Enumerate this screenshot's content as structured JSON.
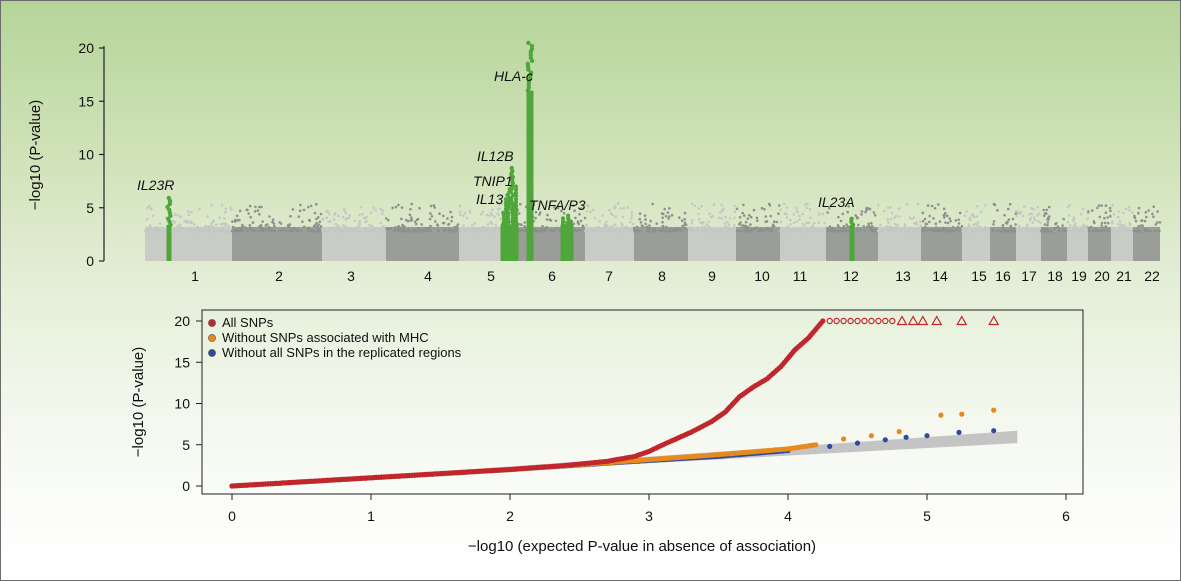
{
  "chart_data": [
    {
      "type": "scatter",
      "title": "",
      "xlabel": "",
      "ylabel": "−log10 (P-value)",
      "ylim": [
        0,
        21
      ],
      "yticks": [
        0,
        5,
        10,
        15,
        20
      ],
      "chromosomes": [
        "1",
        "2",
        "3",
        "4",
        "5",
        "6",
        "7",
        "8",
        "9",
        "10",
        "11",
        "12",
        "13",
        "14",
        "15",
        "16",
        "17",
        "18",
        "19",
        "20",
        "21",
        "22"
      ],
      "chromosome_colors": [
        "#c6c6c6",
        "#8f8f8f"
      ],
      "highlight_color": "#4fa63a",
      "annotated_loci": [
        {
          "gene": "IL23R",
          "chromosome": "1",
          "peak": 6.2
        },
        {
          "gene": "IL13",
          "chromosome": "5",
          "peak": 4.8
        },
        {
          "gene": "IL12B",
          "chromosome": "5",
          "peak": 9.0
        },
        {
          "gene": "TNIP1",
          "chromosome": "5",
          "peak": 7.0
        },
        {
          "gene": "HLA-c",
          "chromosome": "6",
          "peak": 20.5
        },
        {
          "gene": "TNFA/P3",
          "chromosome": "6",
          "peak": 4.3
        },
        {
          "gene": "IL23A",
          "chromosome": "12",
          "peak": 4.0
        }
      ]
    },
    {
      "type": "scatter",
      "title": "",
      "xlabel": "−log10 (expected P-value in absence of association)",
      "ylabel": "−log10 (P-value)",
      "xlim": [
        -0.2,
        6.3
      ],
      "ylim": [
        -0.5,
        21
      ],
      "xticks": [
        0,
        1,
        2,
        3,
        4,
        5,
        6
      ],
      "yticks": [
        0,
        5,
        10,
        15,
        20
      ],
      "legend_position": "top-left",
      "expected_band": {
        "x": [
          0,
          5.65
        ],
        "lower": [
          0,
          5.2
        ],
        "upper": [
          0,
          6.7
        ],
        "color": "#c4c4c4"
      },
      "series": [
        {
          "name": "All SNPs",
          "color": "#c0272d",
          "points": [
            [
              0,
              0
            ],
            [
              0.5,
              0.5
            ],
            [
              1,
              1
            ],
            [
              1.5,
              1.5
            ],
            [
              2,
              2
            ],
            [
              2.4,
              2.5
            ],
            [
              2.7,
              3.0
            ],
            [
              2.9,
              3.6
            ],
            [
              3.0,
              4.2
            ],
            [
              3.1,
              5.0
            ],
            [
              3.3,
              6.5
            ],
            [
              3.45,
              7.8
            ],
            [
              3.55,
              9.0
            ],
            [
              3.65,
              10.8
            ],
            [
              3.75,
              12.0
            ],
            [
              3.85,
              13.0
            ],
            [
              3.95,
              14.5
            ],
            [
              4.05,
              16.5
            ],
            [
              4.15,
              18.0
            ],
            [
              4.25,
              20.0
            ]
          ],
          "capped_x": [
            4.3,
            4.35,
            4.4,
            4.45,
            4.5,
            4.55,
            4.6,
            4.65,
            4.7,
            4.75,
            4.82,
            4.9,
            4.97,
            5.07,
            5.25,
            5.48
          ],
          "capped_value": 20
        },
        {
          "name": "Without SNPs associated with MHC",
          "color": "#e68a1e",
          "points": [
            [
              0,
              0
            ],
            [
              1,
              1
            ],
            [
              2,
              2
            ],
            [
              2.6,
              2.7
            ],
            [
              3,
              3.2
            ],
            [
              3.5,
              3.8
            ],
            [
              4,
              4.5
            ],
            [
              4.2,
              5.0
            ],
            [
              4.4,
              5.7
            ],
            [
              4.6,
              6.1
            ],
            [
              4.8,
              6.6
            ],
            [
              5.1,
              8.6
            ],
            [
              5.25,
              8.7
            ],
            [
              5.48,
              9.2
            ]
          ]
        },
        {
          "name": "Without all SNPs in the replicated regions",
          "color": "#2f4aa0",
          "points": [
            [
              0,
              0
            ],
            [
              1,
              1
            ],
            [
              2,
              2
            ],
            [
              3,
              3.1
            ],
            [
              3.5,
              3.6
            ],
            [
              4,
              4.3
            ],
            [
              4.3,
              4.8
            ],
            [
              4.5,
              5.2
            ],
            [
              4.7,
              5.6
            ],
            [
              4.85,
              5.9
            ],
            [
              5.0,
              6.1
            ],
            [
              5.23,
              6.5
            ],
            [
              5.48,
              6.7
            ]
          ]
        }
      ]
    }
  ]
}
